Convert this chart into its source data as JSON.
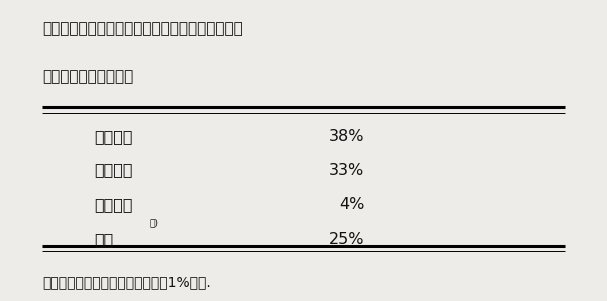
{
  "title_line1": "表１　スラリーに添加した重窒素の施用後１年半",
  "title_line2": "　　　における分配率",
  "row_labels": [
    "作物吸収",
    "土壌残留",
    "浸透溶脱",
    "脱窒"
  ],
  "row_superscripts": [
    false,
    false,
    false,
    true
  ],
  "row_values": [
    "38%",
    "33%",
    "4%",
    "25%"
  ],
  "footnote": "注）　亜酸化窒素としての脱窒は1%以下.",
  "superscript_text": "注)",
  "bg_color": "#eeece8",
  "text_color": "#111111",
  "title_fontsize": 11.0,
  "body_fontsize": 11.5,
  "footnote_fontsize": 10.0
}
